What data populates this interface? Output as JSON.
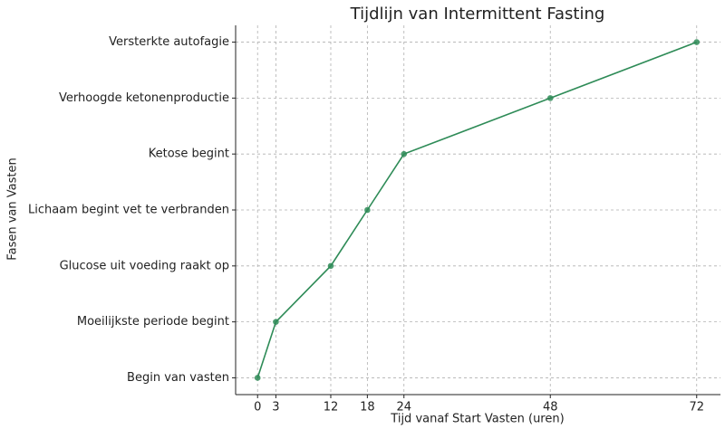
{
  "chart_data": {
    "type": "line",
    "title": "Tijdlijn van Intermittent Fasting",
    "xlabel": "Tijd vanaf Start Vasten (uren)",
    "ylabel": "Fasen van Vasten",
    "x": [
      0,
      3,
      12,
      18,
      24,
      48,
      72
    ],
    "categories": [
      "Begin van vasten",
      "Moeilijkste periode begint",
      "Glucose uit voeding raakt op",
      "Lichaam begint vet te verbranden",
      "Ketose begint",
      "Verhoogde ketonenproductie",
      "Versterkte autofagie"
    ],
    "color": "#2e8b57",
    "xlim": [
      -3.6,
      75.9
    ],
    "xticks": [
      0,
      3,
      12,
      18,
      24,
      48,
      72
    ],
    "grid": true
  }
}
